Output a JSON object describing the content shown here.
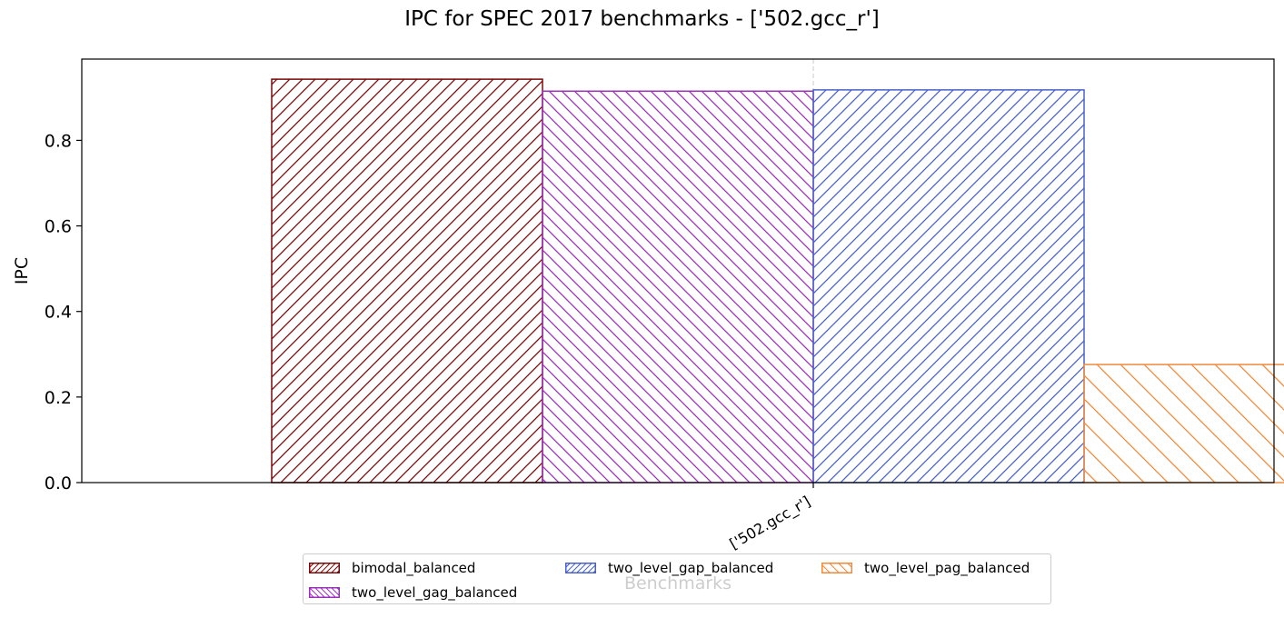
{
  "chart_data": {
    "type": "bar",
    "title": "IPC for SPEC 2017 benchmarks - ['502.gcc_r']",
    "xlabel": "Benchmarks",
    "ylabel": "IPC",
    "categories": [
      "['502.gcc_r']"
    ],
    "ylim": [
      0,
      0.99
    ],
    "yticks": [
      "0.0",
      "0.2",
      "0.4",
      "0.6",
      "0.8"
    ],
    "grid": "x-dashed",
    "legend_placement": "bottom-center",
    "series": [
      {
        "name": "bimodal_balanced",
        "values": [
          0.943
        ],
        "color": "#7a0a0a",
        "hatch": "fwd"
      },
      {
        "name": "two_level_gag_balanced",
        "values": [
          0.915
        ],
        "color": "#9b30b8",
        "hatch": "back"
      },
      {
        "name": "two_level_gap_balanced",
        "values": [
          0.918
        ],
        "color": "#4a62c8",
        "hatch": "fwd"
      },
      {
        "name": "two_level_pag_balanced",
        "values": [
          0.276
        ],
        "color": "#f08a3c",
        "hatch": "back-wide"
      }
    ]
  }
}
